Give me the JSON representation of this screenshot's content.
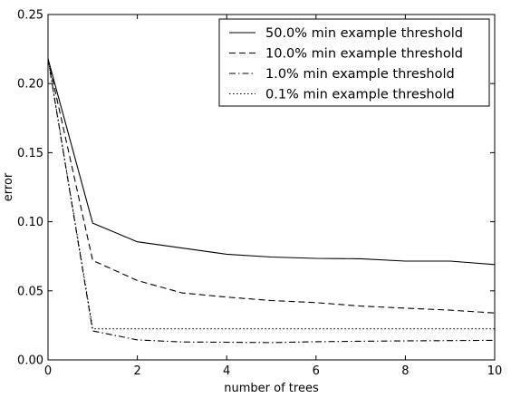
{
  "chart_data": {
    "type": "line",
    "title": "",
    "xlabel": "number of trees",
    "ylabel": "error",
    "xlim": [
      0,
      10
    ],
    "ylim": [
      0,
      0.25
    ],
    "xticks": [
      "0",
      "2",
      "4",
      "6",
      "8",
      "10"
    ],
    "yticks": [
      "0.00",
      "0.05",
      "0.10",
      "0.15",
      "0.20",
      "0.25"
    ],
    "grid": false,
    "legend_position": "top-right",
    "x": [
      0,
      1,
      2,
      3,
      4,
      5,
      6,
      7,
      8,
      9,
      10
    ],
    "series": [
      {
        "name": "50.0% min example threshold",
        "line_style": "solid",
        "color": "#000000",
        "values": [
          0.218,
          0.099,
          0.0855,
          0.081,
          0.0765,
          0.0745,
          0.0735,
          0.0732,
          0.0715,
          0.0715,
          0.069
        ]
      },
      {
        "name": "10.0% min example threshold",
        "line_style": "dashed",
        "color": "#000000",
        "values": [
          0.218,
          0.072,
          0.0575,
          0.0485,
          0.0455,
          0.043,
          0.0415,
          0.039,
          0.0375,
          0.036,
          0.034
        ]
      },
      {
        "name": "1.0% min example threshold",
        "line_style": "dashdot",
        "color": "#000000",
        "values": [
          0.218,
          0.021,
          0.0145,
          0.013,
          0.0128,
          0.0125,
          0.0132,
          0.0135,
          0.0138,
          0.014,
          0.0142
        ]
      },
      {
        "name": "0.1% min example threshold",
        "line_style": "dotted",
        "color": "#000000",
        "values": [
          0.218,
          0.0225,
          0.0225,
          0.0225,
          0.0225,
          0.0225,
          0.0225,
          0.0225,
          0.0225,
          0.0225,
          0.0225
        ]
      }
    ]
  }
}
